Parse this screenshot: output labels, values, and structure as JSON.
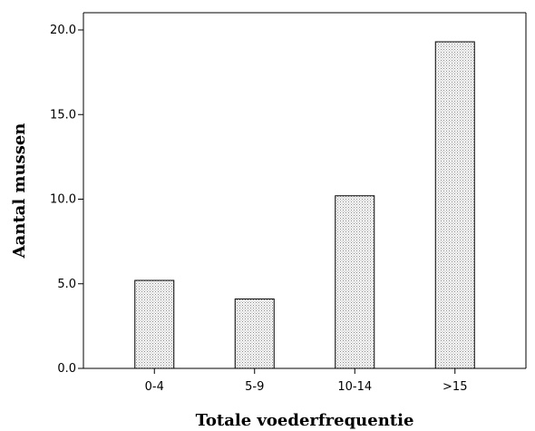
{
  "chart_data": {
    "type": "bar",
    "categories": [
      "0-4",
      "5-9",
      "10-14",
      ">15"
    ],
    "values": [
      5.2,
      4.1,
      10.2,
      19.3
    ],
    "xlabel": "Totale voederfrequentie",
    "ylabel": "Aantal mussen",
    "ylim": [
      0,
      20
    ],
    "yticks": [
      "0.0",
      "5.0",
      "10.0",
      "15.0",
      "20.0"
    ],
    "grid": false,
    "bar_fill": "dotted-gray",
    "colors": {
      "bar_fill": "#ffffff",
      "bar_dots": "#8a8a8a",
      "bar_stroke": "#000000",
      "axis": "#000000"
    }
  }
}
